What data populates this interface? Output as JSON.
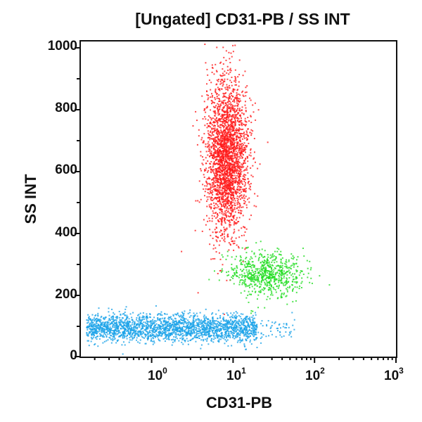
{
  "chart_data": {
    "type": "scatter",
    "title": "[Ungated] CD31-PB / SS INT",
    "xlabel": "CD31-PB",
    "ylabel": "SS INT",
    "xscale": "log",
    "xlim": [
      0.13,
      1000
    ],
    "ylim": [
      0,
      1024
    ],
    "x_ticks": [
      "10^0",
      "10^1",
      "10^2",
      "10^3"
    ],
    "y_ticks": [
      0,
      200,
      400,
      600,
      800,
      1000
    ],
    "grid": false,
    "legend": null,
    "populations": [
      {
        "name": "red population",
        "color": "#ff1a1a",
        "x_center": 8,
        "x_range": [
          2.5,
          13
        ],
        "y_center": 650,
        "y_range": [
          370,
          1000
        ]
      },
      {
        "name": "green population",
        "color": "#22dd22",
        "x_center": 25,
        "x_range": [
          4,
          70
        ],
        "y_center": 270,
        "y_range": [
          170,
          350
        ]
      },
      {
        "name": "blue population",
        "color": "#1aa3e8",
        "x_center": 2,
        "x_range": [
          0.15,
          55
        ],
        "y_center": 95,
        "y_range": [
          50,
          150
        ]
      }
    ]
  },
  "title": "[Ungated] CD31-PB / SS INT",
  "xaxis": {
    "label": "CD31-PB",
    "ticks": [
      {
        "base": "10",
        "exp": "0"
      },
      {
        "base": "10",
        "exp": "1"
      },
      {
        "base": "10",
        "exp": "2"
      },
      {
        "base": "10",
        "exp": "3"
      }
    ]
  },
  "yaxis": {
    "label": "SS INT",
    "ticks": [
      "1000",
      "800",
      "600",
      "400",
      "200",
      "0"
    ]
  }
}
